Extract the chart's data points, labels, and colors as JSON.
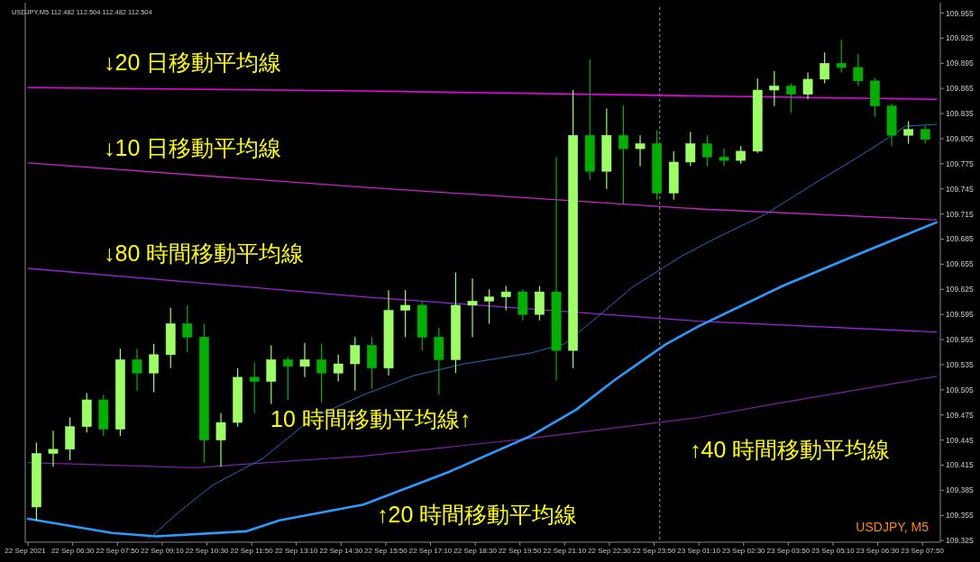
{
  "chart_data": {
    "type": "candlestick",
    "x": [
      "2021-09-22T05:25",
      "2021-09-22T05:55",
      "2021-09-22T06:25",
      "2021-09-22T06:55",
      "2021-09-22T07:25",
      "2021-09-22T07:55",
      "2021-09-22T08:25",
      "2021-09-22T08:55",
      "2021-09-22T09:25",
      "2021-09-22T09:55",
      "2021-09-22T10:25",
      "2021-09-22T10:55",
      "2021-09-22T11:25",
      "2021-09-22T11:55",
      "2021-09-22T12:25",
      "2021-09-22T12:55",
      "2021-09-22T13:25",
      "2021-09-22T13:55",
      "2021-09-22T14:25",
      "2021-09-22T14:55",
      "2021-09-22T15:25",
      "2021-09-22T15:55",
      "2021-09-22T16:25",
      "2021-09-22T16:55",
      "2021-09-22T17:25",
      "2021-09-22T17:55",
      "2021-09-22T18:25",
      "2021-09-22T18:55",
      "2021-09-22T19:25",
      "2021-09-22T19:55",
      "2021-09-22T20:25",
      "2021-09-22T20:55",
      "2021-09-22T21:25",
      "2021-09-22T21:55",
      "2021-09-22T22:25",
      "2021-09-22T22:55",
      "2021-09-22T23:25",
      "2021-09-22T23:55",
      "2021-09-23T00:25",
      "2021-09-23T00:55",
      "2021-09-23T01:25",
      "2021-09-23T01:55",
      "2021-09-23T02:25",
      "2021-09-23T02:55",
      "2021-09-23T03:25",
      "2021-09-23T03:55",
      "2021-09-23T04:25",
      "2021-09-23T04:55",
      "2021-09-23T05:25",
      "2021-09-23T05:55",
      "2021-09-23T06:25",
      "2021-09-23T06:55",
      "2021-09-23T07:25",
      "2021-09-23T07:55"
    ],
    "ohlc": [
      [
        109.365,
        109.442,
        109.349,
        109.429
      ],
      [
        109.429,
        109.456,
        109.413,
        109.434
      ],
      [
        109.434,
        109.472,
        109.421,
        109.461
      ],
      [
        109.461,
        109.501,
        109.454,
        109.493
      ],
      [
        109.493,
        109.499,
        109.45,
        109.458
      ],
      [
        109.458,
        109.554,
        109.45,
        109.541
      ],
      [
        109.541,
        109.554,
        109.504,
        109.525
      ],
      [
        109.525,
        109.56,
        109.502,
        109.547
      ],
      [
        109.547,
        109.603,
        109.531,
        109.584
      ],
      [
        109.584,
        109.606,
        109.55,
        109.568
      ],
      [
        109.568,
        109.584,
        109.418,
        109.445
      ],
      [
        109.445,
        109.477,
        109.413,
        109.466
      ],
      [
        109.466,
        109.531,
        109.461,
        109.52
      ],
      [
        109.52,
        109.538,
        109.477,
        109.515
      ],
      [
        109.515,
        109.558,
        109.488,
        109.541
      ],
      [
        109.541,
        109.544,
        109.493,
        109.533
      ],
      [
        109.533,
        109.561,
        109.52,
        109.541
      ],
      [
        109.541,
        109.56,
        109.49,
        109.525
      ],
      [
        109.525,
        109.547,
        109.515,
        109.536
      ],
      [
        109.536,
        109.568,
        109.504,
        109.558
      ],
      [
        109.558,
        109.568,
        109.506,
        109.531
      ],
      [
        109.531,
        109.624,
        109.522,
        109.6
      ],
      [
        109.6,
        109.624,
        109.568,
        109.606
      ],
      [
        109.606,
        109.611,
        109.552,
        109.568
      ],
      [
        109.568,
        109.579,
        109.499,
        109.541
      ],
      [
        109.541,
        109.645,
        109.525,
        109.606
      ],
      [
        109.606,
        109.638,
        109.568,
        109.611
      ],
      [
        109.611,
        109.625,
        109.584,
        109.616
      ],
      [
        109.616,
        109.629,
        109.6,
        109.622
      ],
      [
        109.622,
        109.625,
        109.588,
        109.595
      ],
      [
        109.595,
        109.629,
        109.588,
        109.622
      ],
      [
        109.622,
        109.783,
        109.516,
        109.552
      ],
      [
        109.552,
        109.863,
        109.531,
        109.809
      ],
      [
        109.809,
        109.9,
        109.756,
        109.766
      ],
      [
        109.766,
        109.841,
        109.745,
        109.809
      ],
      [
        109.809,
        109.845,
        109.727,
        109.793
      ],
      [
        109.793,
        109.809,
        109.772,
        109.799
      ],
      [
        109.799,
        109.815,
        109.732,
        109.74
      ],
      [
        109.74,
        109.79,
        109.732,
        109.777
      ],
      [
        109.777,
        109.813,
        109.772,
        109.799
      ],
      [
        109.799,
        109.809,
        109.772,
        109.783
      ],
      [
        109.783,
        109.793,
        109.772,
        109.779
      ],
      [
        109.779,
        109.796,
        109.775,
        109.79
      ],
      [
        109.79,
        109.877,
        109.788,
        109.863
      ],
      [
        109.863,
        109.886,
        109.844,
        109.868
      ],
      [
        109.868,
        109.871,
        109.836,
        109.858
      ],
      [
        109.858,
        109.884,
        109.852,
        109.876
      ],
      [
        109.876,
        109.908,
        109.871,
        109.895
      ],
      [
        109.895,
        109.923,
        109.884,
        109.89
      ],
      [
        109.89,
        109.906,
        109.868,
        109.874
      ],
      [
        109.874,
        109.877,
        109.831,
        109.844
      ],
      [
        109.844,
        109.847,
        109.796,
        109.809
      ],
      [
        109.809,
        109.826,
        109.799,
        109.816
      ],
      [
        109.816,
        109.82,
        109.799,
        109.804
      ]
    ],
    "colors": [
      "#9cff66",
      "#9cff66",
      "#9cff66",
      "#9cff66",
      "#00b000",
      "#9cff66",
      "#00b000",
      "#9cff66",
      "#9cff66",
      "#00b000",
      "#00b000",
      "#9cff66",
      "#9cff66",
      "#00b000",
      "#9cff66",
      "#00b000",
      "#9cff66",
      "#00b000",
      "#9cff66",
      "#9cff66",
      "#00b000",
      "#9cff66",
      "#9cff66",
      "#00b000",
      "#00b000",
      "#9cff66",
      "#9cff66",
      "#9cff66",
      "#9cff66",
      "#00b000",
      "#9cff66",
      "#00b000",
      "#9cff66",
      "#00b000",
      "#9cff66",
      "#00b000",
      "#9cff66",
      "#00b000",
      "#9cff66",
      "#9cff66",
      "#00b000",
      "#00b000",
      "#9cff66",
      "#9cff66",
      "#9cff66",
      "#00b000",
      "#9cff66",
      "#9cff66",
      "#00b000",
      "#00b000",
      "#00b000",
      "#00b000",
      "#9cff66",
      "#00b000"
    ],
    "series": [
      {
        "type": "line",
        "name": "↓20 日移動平均線",
        "color": "#ee00ee",
        "x": [
          "2021-09-22T05:10",
          "2021-09-22T15:10",
          "2021-09-23T01:10",
          "2021-09-23T08:15"
        ],
        "values": [
          109.866,
          109.862,
          109.856,
          109.852
        ]
      },
      {
        "type": "line",
        "name": "↓10 日移動平均線",
        "color": "#cc22cc",
        "x": [
          "2021-09-22T05:10",
          "2021-09-22T15:10",
          "2021-09-23T01:10",
          "2021-09-23T08:15"
        ],
        "values": [
          109.776,
          109.747,
          109.721,
          109.708
        ]
      },
      {
        "type": "line",
        "name": "↓80 時間移動平均線",
        "color": "#9922dd",
        "x": [
          "2021-09-22T05:10",
          "2021-09-22T15:10",
          "2021-09-23T01:10",
          "2021-09-23T08:15"
        ],
        "values": [
          109.65,
          109.616,
          109.587,
          109.574
        ]
      },
      {
        "type": "line",
        "name": "↑40 時間移動平均線",
        "color": "#7a1fa8",
        "x": [
          "2021-09-22T05:10",
          "2021-09-22T10:10",
          "2021-09-22T15:10",
          "2021-09-22T20:10",
          "2021-09-23T01:10",
          "2021-09-23T03:40",
          "2021-09-23T08:15"
        ],
        "values": [
          109.418,
          109.412,
          109.426,
          109.447,
          109.472,
          109.49,
          109.521
        ]
      },
      {
        "type": "line",
        "name": "↑20 時間移動平均線",
        "color": "#2a9cff",
        "x": [
          "2021-09-22T05:10",
          "2021-09-22T07:40",
          "2021-09-22T09:00",
          "2021-09-22T11:40",
          "2021-09-22T12:40",
          "2021-09-22T15:10",
          "2021-09-22T17:40",
          "2021-09-22T20:10",
          "2021-09-22T21:30",
          "2021-09-22T22:40",
          "2021-09-23T00:10",
          "2021-09-23T01:10",
          "2021-09-23T03:40",
          "2021-09-23T06:10",
          "2021-09-23T08:15"
        ],
        "values": [
          109.351,
          109.334,
          109.33,
          109.336,
          109.349,
          109.368,
          109.406,
          109.45,
          109.481,
          109.517,
          109.559,
          109.581,
          109.629,
          109.671,
          109.705
        ]
      },
      {
        "type": "line",
        "name": "10 時間移動平均線↑",
        "color": "#1f6fbf",
        "x": [
          "2021-09-22T08:46",
          "2021-09-22T09:40",
          "2021-09-22T10:40",
          "2021-09-22T12:10",
          "2021-09-22T13:40",
          "2021-09-22T15:10",
          "2021-09-22T16:40",
          "2021-09-22T18:10",
          "2021-09-22T20:10",
          "2021-09-22T21:10",
          "2021-09-22T22:10",
          "2021-09-22T23:10",
          "2021-09-23T00:40",
          "2021-09-23T01:40",
          "2021-09-23T03:10",
          "2021-09-23T04:40",
          "2021-09-23T05:40",
          "2021-09-23T06:40",
          "2021-09-23T07:20",
          "2021-09-23T08:15"
        ],
        "values": [
          109.327,
          109.359,
          109.391,
          109.423,
          109.472,
          109.499,
          109.522,
          109.536,
          109.549,
          109.56,
          109.593,
          109.627,
          109.665,
          109.686,
          109.715,
          109.753,
          109.777,
          109.802,
          109.82,
          109.822
        ]
      }
    ],
    "xlim": [
      "2021-09-22T05:05",
      "2021-09-23T08:22"
    ],
    "xticks": [
      {
        "value": "2021-09-22T05:10",
        "label": null
      },
      {
        "value": "2021-09-22T06:30",
        "label": "22 Sep 06:30"
      },
      {
        "value": "2021-09-22T07:50",
        "label": "22 Sep 07:50"
      },
      {
        "value": "2021-09-22T09:10",
        "label": "22 Sep 09:10"
      },
      {
        "value": "2021-09-22T10:30",
        "label": "22 Sep 10:30"
      },
      {
        "value": "2021-09-22T11:50",
        "label": "22 Sep 11:50"
      },
      {
        "value": "2021-09-22T13:10",
        "label": "22 Sep 13:10"
      },
      {
        "value": "2021-09-22T14:30",
        "label": "22 Sep 14:30"
      },
      {
        "value": "2021-09-22T15:50",
        "label": "22 Sep 15:50"
      },
      {
        "value": "2021-09-22T17:10",
        "label": "22 Sep 17:10"
      },
      {
        "value": "2021-09-22T18:30",
        "label": "22 Sep 18:30"
      },
      {
        "value": "2021-09-22T19:50",
        "label": "22 Sep 19:50"
      },
      {
        "value": "2021-09-22T21:10",
        "label": "22 Sep 21:10"
      },
      {
        "value": "2021-09-22T22:30",
        "label": "22 Sep 22:30"
      },
      {
        "value": "2021-09-22T23:50",
        "label": "22 Sep 23:50"
      },
      {
        "value": "2021-09-23T01:10",
        "label": "23 Sep 01:10"
      },
      {
        "value": "2021-09-23T02:30",
        "label": "23 Sep 02:30"
      },
      {
        "value": "2021-09-23T03:50",
        "label": "23 Sep 03:50"
      },
      {
        "value": "2021-09-23T05:10",
        "label": "23 Sep 05:10"
      },
      {
        "value": "2021-09-23T06:30",
        "label": "23 Sep 06:30"
      },
      {
        "value": "2021-09-23T07:50",
        "label": "23 Sep 07:50"
      }
    ],
    "ylim": [
      109.323,
      109.962
    ],
    "yticks": [
      109.325,
      109.355,
      109.385,
      109.415,
      109.445,
      109.475,
      109.505,
      109.535,
      109.565,
      109.595,
      109.625,
      109.655,
      109.685,
      109.715,
      109.745,
      109.775,
      109.805,
      109.835,
      109.865,
      109.895,
      109.925,
      109.955
    ],
    "ref_lines": [
      {
        "axis": "x",
        "value": "2021-09-23T00:00",
        "color": "#9a9a9a",
        "line_style": "dashed"
      }
    ],
    "annotations": [
      "USDJPY,M5 112.482 112.504 112.482 112.504",
      "USDJPY, M5",
      "22 Sep 2021"
    ]
  }
}
